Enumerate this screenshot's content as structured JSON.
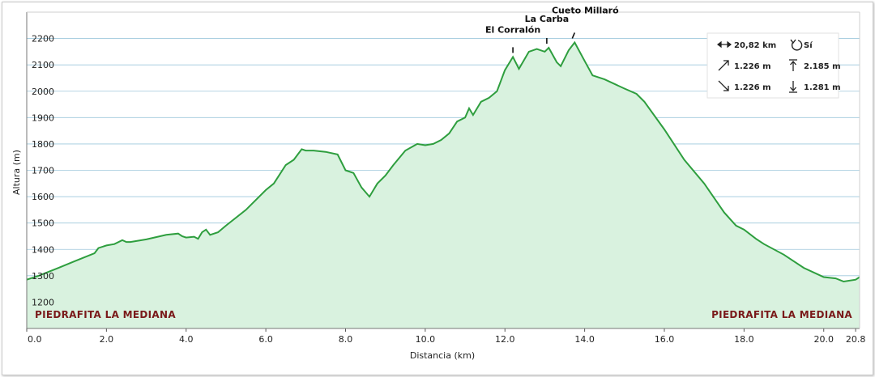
{
  "chart_data": {
    "type": "area",
    "xlabel": "Distancia (km)",
    "ylabel": "Altura (m)",
    "xlim": [
      0,
      20.9
    ],
    "ylim": [
      1100,
      2300
    ],
    "x_ticks": [
      0,
      2,
      4,
      6,
      8,
      10,
      12,
      14,
      16,
      18,
      20,
      20.8
    ],
    "x_tick_labels": [
      "0.0",
      "2.0",
      "4.0",
      "6.0",
      "8.0",
      "10.0",
      "12.0",
      "14.0",
      "16.0",
      "18.0",
      "20.0",
      "20.8"
    ],
    "y_ticks": [
      1200,
      1300,
      1400,
      1500,
      1600,
      1700,
      1800,
      1900,
      2000,
      2100,
      2200
    ],
    "grid": true,
    "series_color": "#2e9e3e",
    "fill_color": "#d9f2df",
    "x": [
      0,
      0.3,
      0.8,
      1.2,
      1.7,
      1.8,
      2.0,
      2.2,
      2.4,
      2.5,
      2.6,
      3.0,
      3.5,
      3.8,
      3.9,
      4.0,
      4.2,
      4.3,
      4.4,
      4.5,
      4.6,
      4.8,
      5.0,
      5.5,
      6.0,
      6.2,
      6.5,
      6.7,
      6.9,
      7.0,
      7.2,
      7.5,
      7.8,
      8.0,
      8.2,
      8.4,
      8.6,
      8.8,
      9.0,
      9.2,
      9.5,
      9.8,
      10.0,
      10.2,
      10.4,
      10.6,
      10.8,
      11.0,
      11.1,
      11.2,
      11.4,
      11.6,
      11.8,
      12.0,
      12.2,
      12.35,
      12.6,
      12.8,
      13.0,
      13.1,
      13.3,
      13.4,
      13.6,
      13.75,
      14.0,
      14.2,
      14.5,
      15.0,
      15.3,
      15.5,
      16.0,
      16.5,
      17.0,
      17.5,
      17.8,
      18.0,
      18.3,
      18.5,
      19.0,
      19.5,
      20.0,
      20.3,
      20.5,
      20.8,
      20.9
    ],
    "y": [
      1285,
      1300,
      1330,
      1355,
      1385,
      1405,
      1415,
      1420,
      1435,
      1428,
      1428,
      1438,
      1455,
      1460,
      1450,
      1445,
      1448,
      1440,
      1465,
      1475,
      1455,
      1465,
      1490,
      1550,
      1625,
      1650,
      1720,
      1740,
      1780,
      1775,
      1775,
      1770,
      1760,
      1700,
      1690,
      1635,
      1600,
      1650,
      1680,
      1720,
      1775,
      1800,
      1795,
      1800,
      1815,
      1840,
      1885,
      1900,
      1935,
      1910,
      1960,
      1975,
      2000,
      2080,
      2130,
      2085,
      2150,
      2160,
      2150,
      2165,
      2110,
      2095,
      2155,
      2185,
      2115,
      2060,
      2045,
      2010,
      1990,
      1960,
      1855,
      1740,
      1650,
      1540,
      1490,
      1475,
      1440,
      1420,
      1380,
      1330,
      1295,
      1290,
      1278,
      1285,
      1295
    ],
    "start_label": "PIEDRAFITA LA MEDIANA",
    "end_label": "PIEDRAFITA LA MEDIANA",
    "annotations": [
      {
        "text": "El Corralón",
        "x": 12.2,
        "y": 2130
      },
      {
        "text": "La Carba",
        "x": 13.05,
        "y": 2165
      },
      {
        "text": "Cueto Millaró",
        "x": 13.75,
        "y": 2185
      }
    ],
    "stats": {
      "distance": "20,82 km",
      "circular": "Sí",
      "ascent": "1.226 m",
      "max_altitude": "2.185 m",
      "descent": "1.226 m",
      "min_altitude": "1.281 m"
    }
  }
}
